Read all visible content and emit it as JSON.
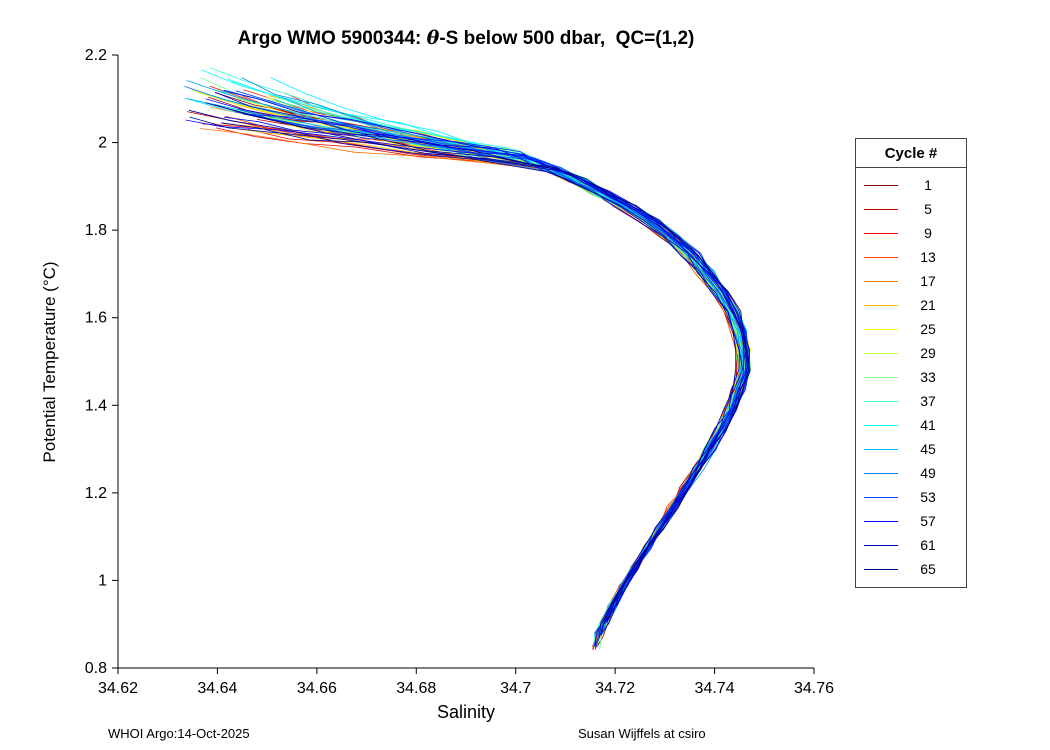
{
  "title": {
    "pre": "Argo WMO 5900344: ",
    "theta": "θ",
    "post": "-S below 500 dbar,  QC=(1,2)"
  },
  "footer_left": "WHOI Argo:14-Oct-2025",
  "footer_right": "Susan Wijffels at csiro",
  "legend": {
    "title": "Cycle #",
    "entries": [
      1,
      5,
      9,
      13,
      17,
      21,
      25,
      29,
      33,
      37,
      41,
      45,
      49,
      53,
      57,
      61,
      65
    ]
  },
  "chart_data": {
    "type": "line",
    "title": "Argo WMO 5900344: θ-S below 500 dbar,  QC=(1,2)",
    "xlabel": "Salinity",
    "ylabel": "Potential Temperature (°C)",
    "xlim": [
      34.62,
      34.76
    ],
    "ylim": [
      0.8,
      2.2
    ],
    "xtick_labels": [
      "34.62",
      "34.64",
      "34.66",
      "34.68",
      "34.7",
      "34.72",
      "34.74",
      "34.76"
    ],
    "ytick_labels": [
      "0.8",
      "1",
      "1.2",
      "1.4",
      "1.6",
      "1.8",
      "2",
      "2.2"
    ],
    "grid": false,
    "legend_position": "right-outside",
    "n_cycles": 65,
    "cycle_colors": [
      "#800000",
      "#8F0000",
      "#9F0000",
      "#AF0000",
      "#BF0000",
      "#CF0000",
      "#DF0000",
      "#EF0000",
      "#FF0000",
      "#FF1000",
      "#FF2000",
      "#FF3000",
      "#FF4000",
      "#FF5000",
      "#FF6000",
      "#FF7000",
      "#FF8000",
      "#FF8F00",
      "#FF9F00",
      "#FFAF00",
      "#FFBF00",
      "#FFCF00",
      "#FFDF00",
      "#FFEF00",
      "#FFFF00",
      "#EFFF10",
      "#DFFF20",
      "#CFFF30",
      "#BFFF40",
      "#AFFF50",
      "#9FFF60",
      "#8FFF70",
      "#80FF80",
      "#70FF8F",
      "#60FF9F",
      "#50FFAF",
      "#40FFBF",
      "#30FFCF",
      "#20FFDF",
      "#10FFEF",
      "#00FFFF",
      "#00EFFF",
      "#00DFFF",
      "#00CFFF",
      "#00BFFF",
      "#00AFFF",
      "#009FFF",
      "#008FFF",
      "#0080FF",
      "#0070FF",
      "#0060FF",
      "#0050FF",
      "#0040FF",
      "#0030FF",
      "#0020FF",
      "#0010FF",
      "#0000FF",
      "#0000EF",
      "#0000DF",
      "#0000CF",
      "#0000BF",
      "#0000AF",
      "#00009F",
      "#00008F",
      "#000080"
    ],
    "base_curve": [
      [
        34.687,
        2.03
      ],
      [
        34.692,
        2.01
      ],
      [
        34.697,
        1.99
      ],
      [
        34.702,
        1.965
      ],
      [
        34.707,
        1.94
      ],
      [
        34.712,
        1.915
      ],
      [
        34.717,
        1.885
      ],
      [
        34.722,
        1.855
      ],
      [
        34.727,
        1.82
      ],
      [
        34.731,
        1.785
      ],
      [
        34.735,
        1.745
      ],
      [
        34.738,
        1.705
      ],
      [
        34.741,
        1.66
      ],
      [
        34.7435,
        1.615
      ],
      [
        34.745,
        1.57
      ],
      [
        34.7458,
        1.525
      ],
      [
        34.7458,
        1.48
      ],
      [
        34.7448,
        1.435
      ],
      [
        34.7432,
        1.39
      ],
      [
        34.7412,
        1.345
      ],
      [
        34.739,
        1.3
      ],
      [
        34.7365,
        1.255
      ],
      [
        34.734,
        1.21
      ],
      [
        34.7315,
        1.165
      ],
      [
        34.729,
        1.12
      ],
      [
        34.7265,
        1.075
      ],
      [
        34.724,
        1.03
      ],
      [
        34.7215,
        0.985
      ],
      [
        34.7195,
        0.945
      ],
      [
        34.7178,
        0.905
      ],
      [
        34.7168,
        0.875
      ],
      [
        34.716,
        0.845
      ]
    ],
    "render_hints": {
      "join_t_min": 1.93,
      "join_t_range": 0.06,
      "start_s_min": 34.633,
      "start_s_range": 0.021,
      "start_t_base": 2.03,
      "start_t_range": 0.1,
      "peak_boost": 0.06,
      "peak_center": 0.4,
      "peak_width": 0.02,
      "ds_spread": 0.004,
      "entry_points": 7,
      "entry_t_wobble": 0.014,
      "entry_s_wobble": 0.0015,
      "point_jitter_s": 0.0012,
      "point_jitter_t": 0.008
    }
  }
}
